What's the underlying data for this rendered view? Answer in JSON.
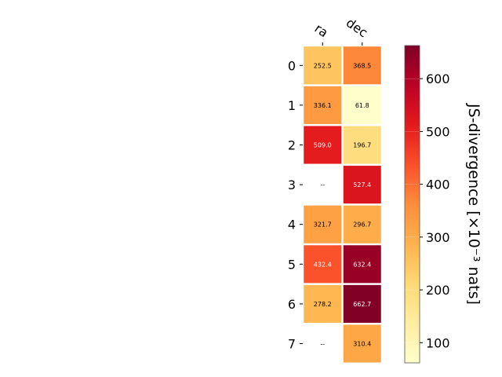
{
  "chart_data": {
    "type": "heatmap",
    "columns": [
      "ra",
      "dec"
    ],
    "rows": [
      "0",
      "1",
      "2",
      "3",
      "4",
      "5",
      "6",
      "7"
    ],
    "values": [
      [
        252.5,
        368.5
      ],
      [
        336.1,
        61.8
      ],
      [
        509.0,
        196.7
      ],
      [
        null,
        527.4
      ],
      [
        321.7,
        296.7
      ],
      [
        432.4,
        632.4
      ],
      [
        278.2,
        662.7
      ],
      [
        null,
        310.4
      ]
    ],
    "cell_labels": [
      [
        "252.5",
        "368.5"
      ],
      [
        "336.1",
        "61.8"
      ],
      [
        "509.0",
        "196.7"
      ],
      [
        "--",
        "527.4"
      ],
      [
        "321.7",
        "296.7"
      ],
      [
        "432.4",
        "632.4"
      ],
      [
        "278.2",
        "662.7"
      ],
      [
        "--",
        "310.4"
      ]
    ],
    "colormap": "YlOrRd",
    "vmin": 61.8,
    "vmax": 662.7,
    "colorbar": {
      "label": "JS-divergence [×10⁻³ nats]",
      "ticks": [
        100,
        200,
        300,
        400,
        500,
        600
      ],
      "tick_labels": [
        "100",
        "200",
        "300",
        "400",
        "500",
        "600"
      ]
    },
    "grid": false
  }
}
